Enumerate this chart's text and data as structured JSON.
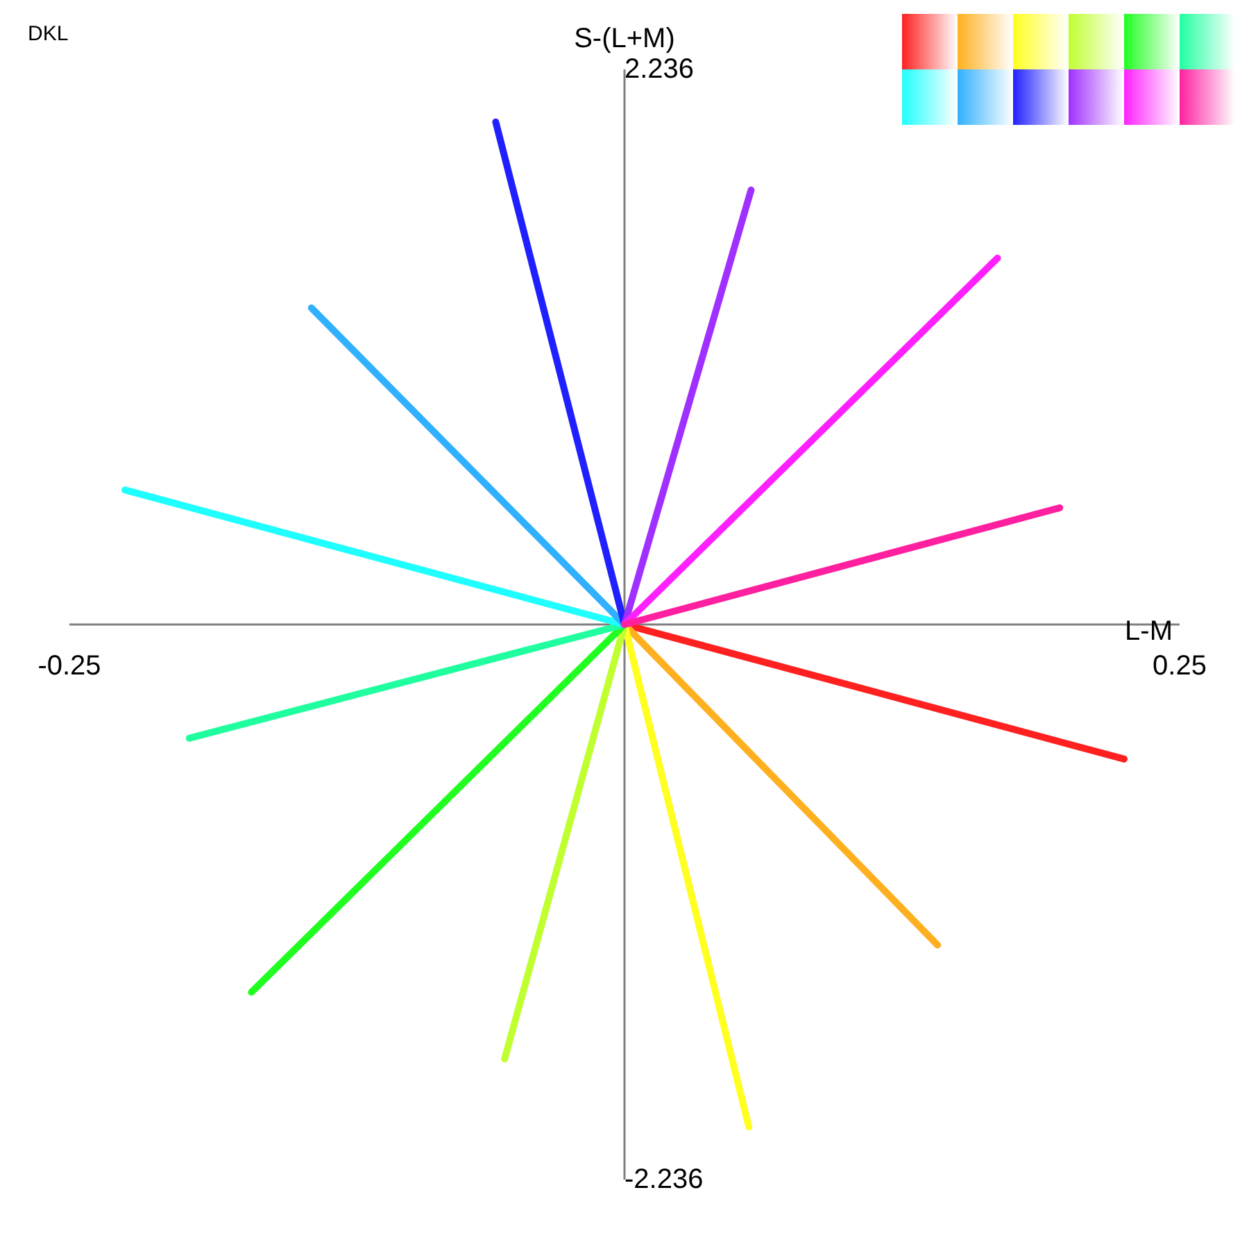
{
  "chart_data": {
    "type": "line",
    "title": "DKL",
    "xlabel": "L-M",
    "ylabel": "S-(L+M)",
    "xlim": [
      -0.25,
      0.25
    ],
    "ylim": [
      -2.236,
      2.236
    ],
    "xticks": [
      -0.25,
      0.25
    ],
    "yticks": [
      -2.236,
      2.236
    ],
    "series": [
      {
        "color": "#ff2020",
        "x": [
          0,
          0.225
        ],
        "values": [
          0,
          -0.542
        ]
      },
      {
        "color": "#ffb020",
        "x": [
          0,
          0.141
        ],
        "values": [
          0,
          -1.291
        ]
      },
      {
        "color": "#ffff20",
        "x": [
          0,
          0.056
        ],
        "values": [
          0,
          -2.024
        ]
      },
      {
        "color": "#c0ff30",
        "x": [
          0,
          -0.054
        ],
        "values": [
          0,
          -1.75
        ]
      },
      {
        "color": "#20ff20",
        "x": [
          0,
          -0.168
        ],
        "values": [
          0,
          -1.481
        ]
      },
      {
        "color": "#20ffa0",
        "x": [
          0,
          -0.196
        ],
        "values": [
          0,
          -0.458
        ]
      },
      {
        "color": "#20ffff",
        "x": [
          0,
          -0.225
        ],
        "values": [
          0,
          0.542
        ]
      },
      {
        "color": "#30b0ff",
        "x": [
          0,
          -0.141
        ],
        "values": [
          0,
          1.275
        ]
      },
      {
        "color": "#2020ff",
        "x": [
          0,
          -0.058
        ],
        "values": [
          0,
          2.024
        ]
      },
      {
        "color": "#a030ff",
        "x": [
          0,
          0.057
        ],
        "values": [
          0,
          1.75
        ]
      },
      {
        "color": "#ff20ff",
        "x": [
          0,
          0.168
        ],
        "values": [
          0,
          1.476
        ]
      },
      {
        "color": "#ff20a0",
        "x": [
          0,
          0.196
        ],
        "values": [
          0,
          0.47
        ]
      }
    ]
  }
}
